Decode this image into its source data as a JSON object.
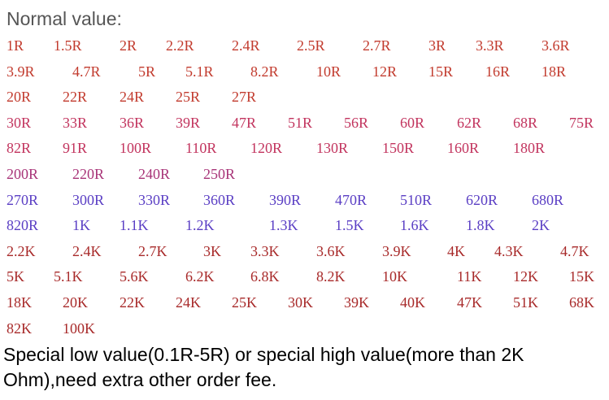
{
  "header": {
    "title": "Normal value:"
  },
  "rows": [
    {
      "color": "#c23b2e",
      "items": [
        "1R",
        "1.5R",
        "2R",
        "2.2R",
        "2.4R",
        "2.5R",
        "2.7R",
        "3R",
        "3.3R",
        "3.6R"
      ]
    },
    {
      "color": "#c23b2e",
      "items": [
        "3.9R",
        "4.7R",
        "5R",
        "5.1R",
        "8.2R",
        "10R",
        "12R",
        "15R",
        "16R",
        "18R"
      ]
    },
    {
      "color": "#c23b2e",
      "items": [
        "20R",
        "22R",
        "24R",
        "25R",
        "27R"
      ]
    },
    {
      "color": "#c2345e",
      "items": [
        "30R",
        "33R",
        "36R",
        "39R",
        "47R",
        "51R",
        "56R",
        "60R",
        "62R",
        "68R",
        "75R"
      ]
    },
    {
      "color": "#c2345e",
      "items": [
        "82R",
        "91R",
        "100R",
        "110R",
        "120R",
        "130R",
        "150R",
        "160R",
        "180R"
      ]
    },
    {
      "color": "#a83478",
      "items": [
        "200R",
        "220R",
        "240R",
        "250R"
      ]
    },
    {
      "color": "#5a3ec4",
      "items": [
        "270R",
        "300R",
        "330R",
        "360R",
        "390R",
        "470R",
        "510R",
        "620R",
        "680R"
      ]
    },
    {
      "color": "#5a3ec4",
      "items": [
        "820R",
        "1K",
        "1.1K",
        "1.2K",
        "1.3K",
        "1.5K",
        "1.6K",
        "1.8K",
        "2K"
      ]
    },
    {
      "color": "#a82a2a",
      "items": [
        "2.2K",
        "2.4K",
        "2.7K",
        "3K",
        "3.3K",
        "3.6K",
        "3.9K",
        "4K",
        "4.3K",
        "4.7K"
      ]
    },
    {
      "color": "#a82a2a",
      "items": [
        "5K",
        "5.1K",
        "5.6K",
        "6.2K",
        "6.8K",
        "8.2K",
        "10K",
        "11K",
        "12K",
        "15K"
      ]
    },
    {
      "color": "#a82a2a",
      "items": [
        "18K",
        "20K",
        "22K",
        "24K",
        "25K",
        "30K",
        "39K",
        "40K",
        "47K",
        "51K",
        "68K"
      ]
    },
    {
      "color": "#a82a2a",
      "items": [
        "82K",
        "100K"
      ]
    }
  ],
  "footer": {
    "text": "Special low value(0.1R-5R) or special high value(more than 2K Ohm),need extra other order fee."
  }
}
